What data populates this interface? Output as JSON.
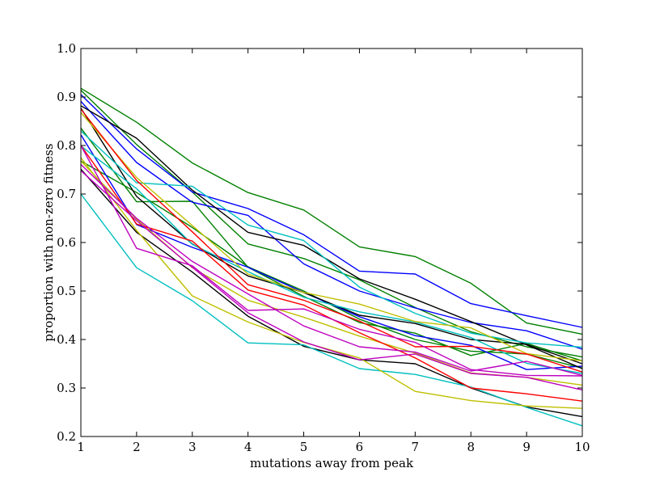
{
  "chart_data": {
    "type": "line",
    "title": "",
    "xlabel": "mutations away from peak",
    "ylabel": "proportion with non-zero fitness",
    "xlim": [
      1,
      10
    ],
    "ylim": [
      0.2,
      1.0
    ],
    "xticks": [
      "1",
      "2",
      "3",
      "4",
      "5",
      "6",
      "7",
      "8",
      "9",
      "10"
    ],
    "yticks": [
      "0.2",
      "0.3",
      "0.4",
      "0.5",
      "0.6",
      "0.7",
      "0.8",
      "0.9",
      "1.0"
    ],
    "grid": false,
    "x": [
      1,
      2,
      3,
      4,
      5,
      6,
      7,
      8,
      9,
      10
    ],
    "series": [
      {
        "color": "#008000",
        "values": [
          0.918,
          0.848,
          0.764,
          0.703,
          0.667,
          0.591,
          0.571,
          0.516,
          0.434,
          0.411
        ]
      },
      {
        "color": "#008000",
        "values": [
          0.914,
          0.802,
          0.704,
          0.597,
          0.567,
          0.523,
          0.466,
          0.416,
          0.385,
          0.364
        ]
      },
      {
        "color": "#008000",
        "values": [
          0.836,
          0.684,
          0.685,
          0.549,
          0.489,
          0.435,
          0.413,
          0.367,
          0.392,
          0.356
        ]
      },
      {
        "color": "#008000",
        "values": [
          0.768,
          0.703,
          0.631,
          0.55,
          0.5,
          0.442,
          0.4,
          0.376,
          0.37,
          0.341
        ]
      },
      {
        "color": "#0000ff",
        "values": [
          0.905,
          0.793,
          0.704,
          0.67,
          0.616,
          0.541,
          0.535,
          0.474,
          0.449,
          0.425
        ]
      },
      {
        "color": "#0000ff",
        "values": [
          0.891,
          0.765,
          0.683,
          0.656,
          0.556,
          0.5,
          0.465,
          0.435,
          0.418,
          0.38
        ]
      },
      {
        "color": "#0000ff",
        "values": [
          0.822,
          0.637,
          0.59,
          0.549,
          0.497,
          0.447,
          0.408,
          0.388,
          0.338,
          0.345
        ]
      },
      {
        "color": "#000000",
        "values": [
          0.882,
          0.815,
          0.708,
          0.621,
          0.594,
          0.525,
          0.483,
          0.437,
          0.389,
          0.34
        ]
      },
      {
        "color": "#000000",
        "values": [
          0.877,
          0.695,
          0.597,
          0.531,
          0.497,
          0.45,
          0.433,
          0.4,
          0.39,
          0.35
        ]
      },
      {
        "color": "#000000",
        "values": [
          0.751,
          0.621,
          0.539,
          0.448,
          0.386,
          0.358,
          0.35,
          0.3,
          0.261,
          0.241
        ]
      },
      {
        "color": "#00bfbf",
        "values": [
          0.83,
          0.723,
          0.716,
          0.636,
          0.604,
          0.508,
          0.454,
          0.413,
          0.393,
          0.384
        ]
      },
      {
        "color": "#00bfbf",
        "values": [
          0.799,
          0.711,
          0.596,
          0.54,
          0.487,
          0.457,
          0.436,
          0.404,
          0.351,
          0.33
        ]
      },
      {
        "color": "#00bfbf",
        "values": [
          0.7,
          0.548,
          0.48,
          0.393,
          0.389,
          0.34,
          0.328,
          0.302,
          0.26,
          0.222
        ]
      },
      {
        "color": "#bfbf00",
        "values": [
          0.868,
          0.734,
          0.635,
          0.535,
          0.497,
          0.473,
          0.437,
          0.424,
          0.371,
          0.356
        ]
      },
      {
        "color": "#bfbf00",
        "values": [
          0.775,
          0.625,
          0.49,
          0.436,
          0.394,
          0.362,
          0.293,
          0.274,
          0.263,
          0.258
        ]
      },
      {
        "color": "#bfbf00",
        "values": [
          0.768,
          0.648,
          0.548,
          0.481,
          0.446,
          0.407,
          0.372,
          0.331,
          0.322,
          0.306
        ]
      },
      {
        "color": "#ff0000",
        "values": [
          0.875,
          0.728,
          0.622,
          0.513,
          0.481,
          0.438,
          0.385,
          0.386,
          0.37,
          0.333
        ]
      },
      {
        "color": "#ff0000",
        "values": [
          0.8,
          0.638,
          0.603,
          0.502,
          0.471,
          0.414,
          0.362,
          0.3,
          0.288,
          0.273
        ]
      },
      {
        "color": "#bf00bf",
        "values": [
          0.8,
          0.588,
          0.552,
          0.46,
          0.463,
          0.421,
          0.394,
          0.338,
          0.326,
          0.325
        ]
      },
      {
        "color": "#bf00bf",
        "values": [
          0.761,
          0.65,
          0.561,
          0.494,
          0.428,
          0.385,
          0.374,
          0.335,
          0.355,
          0.326
        ]
      },
      {
        "color": "#bf00bf",
        "values": [
          0.748,
          0.645,
          0.549,
          0.455,
          0.395,
          0.358,
          0.37,
          0.33,
          0.322,
          0.296
        ]
      }
    ]
  }
}
